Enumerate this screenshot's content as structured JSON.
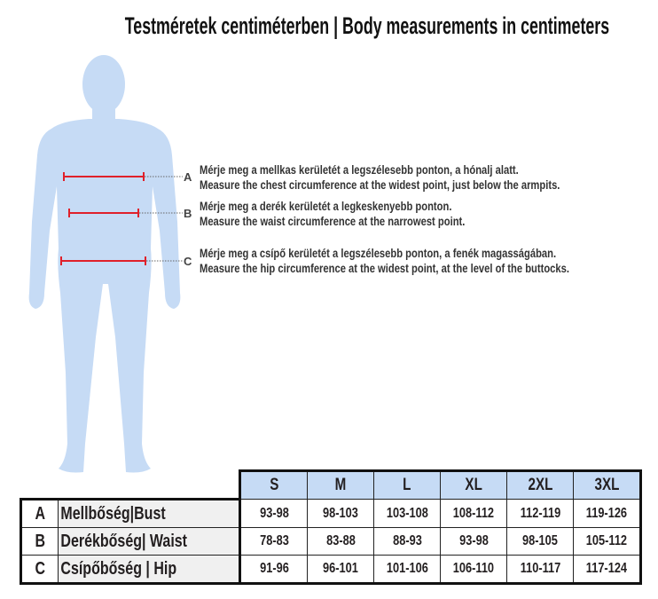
{
  "title": "Testméretek centiméterben | Body measurements in centimeters",
  "colors": {
    "figure": "#c6dbf5",
    "measure_line": "#e0202a",
    "header_bg": "#c6dbf5",
    "label_bg": "#f0f0f0"
  },
  "measurements": [
    {
      "letter": "A",
      "hu": "Mérje meg a mellkas kerületét a legszélesebb ponton, a hónalj alatt.",
      "en": "Measure the chest circumference at the widest point, just below the armpits."
    },
    {
      "letter": "B",
      "hu": "Mérje meg a derék kerületét a legkeskenyebb ponton.",
      "en": "Measure the waist circumference at the narrowest point."
    },
    {
      "letter": "C",
      "hu": "Mérje meg a csípő kerületét a legszélesebb ponton, a fenék magasságában.",
      "en": "Measure the hip circumference at the widest point, at the level of the buttocks."
    }
  ],
  "table": {
    "sizes": [
      "S",
      "M",
      "L",
      "XL",
      "2XL",
      "3XL"
    ],
    "rows": [
      {
        "letter": "A",
        "label": "Mellbőség|Bust",
        "values": [
          "93-98",
          "98-103",
          "103-108",
          "108-112",
          "112-119",
          "119-126"
        ]
      },
      {
        "letter": "B",
        "label": "Derékbőség| Waist",
        "values": [
          "78-83",
          "83-88",
          "88-93",
          "93-98",
          "98-105",
          "105-112"
        ]
      },
      {
        "letter": "C",
        "label": "Csípőbőség | Hip",
        "values": [
          "91-96",
          "96-101",
          "101-106",
          "106-110",
          "110-117",
          "117-124"
        ]
      }
    ]
  }
}
